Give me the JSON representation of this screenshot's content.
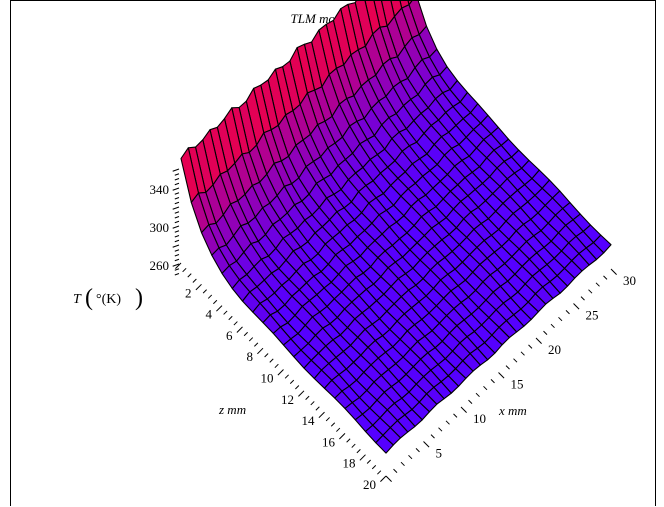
{
  "chart_data": {
    "type": "surface3d",
    "title": "TLM modeling",
    "zlabel": "T",
    "zlabel_unit": "°(K)",
    "xlabel": "x mm",
    "ylabel": "z mm",
    "x_ticks": [
      5,
      10,
      15,
      20,
      25,
      30
    ],
    "z_ticks": [
      2,
      4,
      6,
      8,
      10,
      12,
      14,
      16,
      18,
      20
    ],
    "t_ticks": [
      260,
      300,
      340
    ],
    "x_range": [
      0,
      30
    ],
    "z_range": [
      0,
      20
    ],
    "t_range": [
      240,
      360
    ],
    "grid_x_count": 32,
    "grid_z_count": 21,
    "surface_profile": {
      "description_free": true,
      "edge_temperature": 350,
      "interior_temperature": 265
    },
    "colormap": [
      "#5500ff",
      "#ff0033"
    ]
  }
}
